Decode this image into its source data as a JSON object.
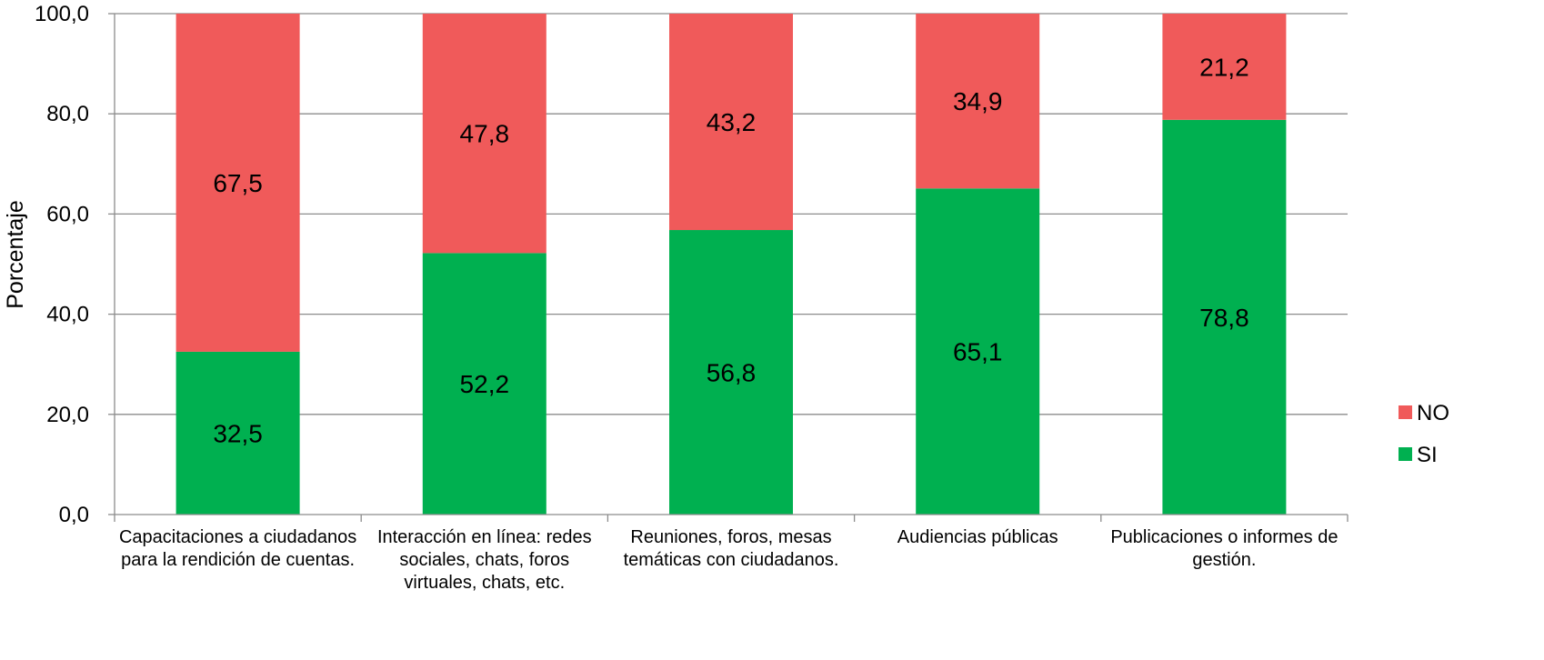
{
  "chart_data": {
    "type": "bar",
    "stacked": true,
    "categories": [
      [
        "Capacitaciones a ciudadanos",
        "para la rendición de cuentas."
      ],
      [
        "Interacción en línea: redes",
        "sociales, chats, foros",
        "virtuales, chats, etc."
      ],
      [
        "Reuniones, foros, mesas",
        "temáticas con ciudadanos."
      ],
      [
        "Audiencias públicas"
      ],
      [
        "Publicaciones o informes de",
        "gestión."
      ]
    ],
    "series": [
      {
        "name": "SI",
        "color": "#00b050",
        "values": [
          32.5,
          52.2,
          56.8,
          65.1,
          78.8
        ],
        "labels": [
          "32,5",
          "52,2",
          "56,8",
          "65,1",
          "78,8"
        ]
      },
      {
        "name": "NO",
        "color": "#f05a5a",
        "values": [
          67.5,
          47.8,
          43.2,
          34.9,
          21.2
        ],
        "labels": [
          "67,5",
          "47,8",
          "43,2",
          "34,9",
          "21,2"
        ]
      }
    ],
    "ylabel": "Porcentaje",
    "ylim": [
      0,
      100
    ],
    "yticks": [
      "0,0",
      "20,0",
      "40,0",
      "60,0",
      "80,0",
      "100,0"
    ],
    "grid": true,
    "legend": {
      "position": "right",
      "order": [
        "NO",
        "SI"
      ]
    }
  }
}
